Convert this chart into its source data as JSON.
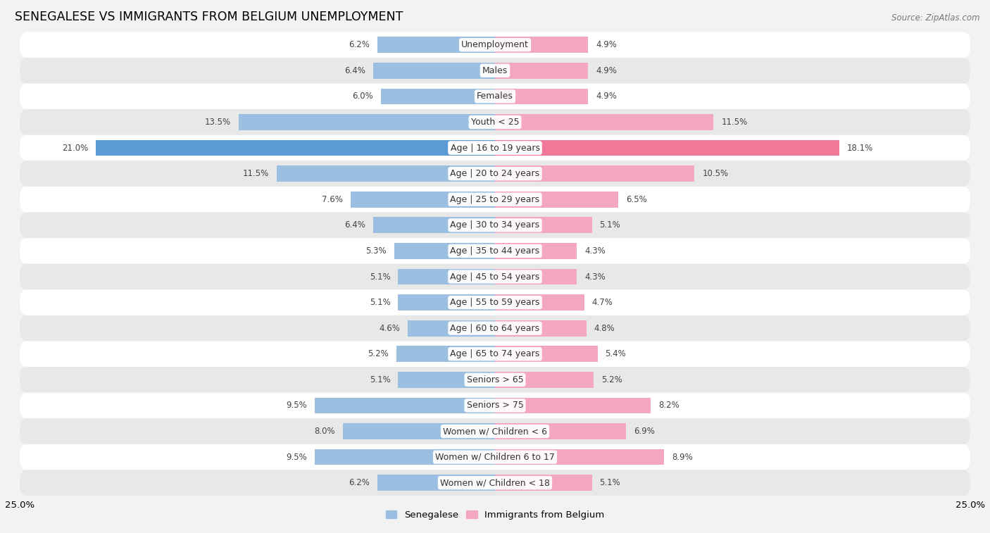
{
  "title": "SENEGALESE VS IMMIGRANTS FROM BELGIUM UNEMPLOYMENT",
  "source": "Source: ZipAtlas.com",
  "categories": [
    "Unemployment",
    "Males",
    "Females",
    "Youth < 25",
    "Age | 16 to 19 years",
    "Age | 20 to 24 years",
    "Age | 25 to 29 years",
    "Age | 30 to 34 years",
    "Age | 35 to 44 years",
    "Age | 45 to 54 years",
    "Age | 55 to 59 years",
    "Age | 60 to 64 years",
    "Age | 65 to 74 years",
    "Seniors > 65",
    "Seniors > 75",
    "Women w/ Children < 6",
    "Women w/ Children 6 to 17",
    "Women w/ Children < 18"
  ],
  "senegalese": [
    6.2,
    6.4,
    6.0,
    13.5,
    21.0,
    11.5,
    7.6,
    6.4,
    5.3,
    5.1,
    5.1,
    4.6,
    5.2,
    5.1,
    9.5,
    8.0,
    9.5,
    6.2
  ],
  "belgium": [
    4.9,
    4.9,
    4.9,
    11.5,
    18.1,
    10.5,
    6.5,
    5.1,
    4.3,
    4.3,
    4.7,
    4.8,
    5.4,
    5.2,
    8.2,
    6.9,
    8.9,
    5.1
  ],
  "senegalese_color": "#9bbfe0",
  "belgium_color": "#f4a8c0",
  "highlight_senegalese_color": "#5b9bd5",
  "highlight_belgium_color": "#f07898",
  "axis_limit": 25.0,
  "bar_height": 0.62,
  "bg_color": "#f2f2f2",
  "row_color_even": "#ffffff",
  "row_color_odd": "#e8e8e8",
  "label_fontsize": 9.0,
  "title_fontsize": 12.5,
  "source_fontsize": 8.5,
  "value_fontsize": 8.5,
  "highlight_rows": [
    "Age | 16 to 19 years",
    "Youth < 25"
  ]
}
